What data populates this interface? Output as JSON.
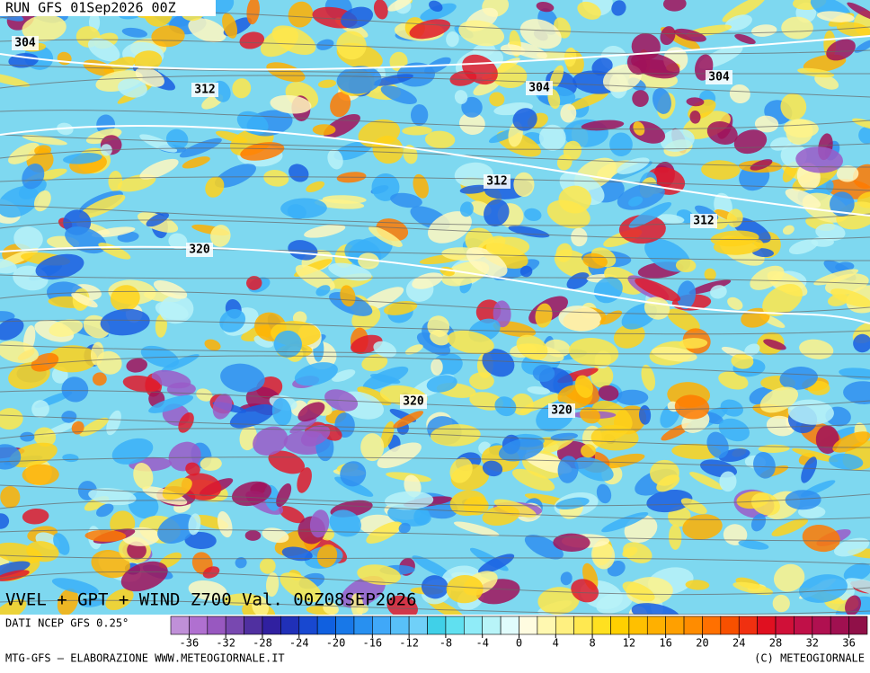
{
  "header": {
    "run": "RUN GFS 01Sep2026 00Z"
  },
  "contour_labels": [
    "304",
    "312",
    "304",
    "304",
    "312",
    "312",
    "320",
    "320",
    "320"
  ],
  "footer": {
    "title": "VVEL + GPT + WIND Z700 Val. 00Z08SEP2026",
    "source": "DATI NCEP GFS 0.25°",
    "credit_left": "MTG-GFS — ELABORAZIONE WWW.METEOGIORNALE.IT",
    "credit_right": "(C) METEOGIORNALE"
  },
  "colorbar": {
    "range": [
      -38,
      38
    ],
    "ticks": [
      -36,
      -32,
      -28,
      -24,
      -20,
      -16,
      -12,
      -8,
      -4,
      0,
      4,
      8,
      12,
      16,
      20,
      24,
      28,
      32,
      36
    ],
    "colors": [
      "#c090d8",
      "#b070d0",
      "#9858c0",
      "#7848b0",
      "#5030a0",
      "#3020a0",
      "#2030b8",
      "#1848d0",
      "#1060e0",
      "#1878e8",
      "#2890f0",
      "#40a8f8",
      "#58c0f8",
      "#70d0f8",
      "#40d0e8",
      "#60e0f0",
      "#90ecf8",
      "#b8f4f8",
      "#e0fcfc",
      "#fffce0",
      "#fff8b0",
      "#fff080",
      "#ffe850",
      "#ffe020",
      "#ffd000",
      "#ffc000",
      "#ffb000",
      "#ffa000",
      "#ff8c00",
      "#ff7000",
      "#f85000",
      "#f03010",
      "#e01020",
      "#d01038",
      "#c01048",
      "#b01050",
      "#a01050",
      "#901048"
    ]
  }
}
